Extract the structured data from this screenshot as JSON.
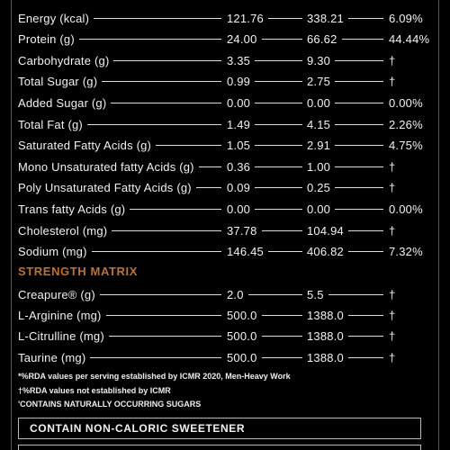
{
  "nutrition": {
    "rows": [
      [
        "Energy (kcal)",
        "121.76",
        "338.21",
        "6.09%"
      ],
      [
        "Protein (g)",
        "24.00",
        "66.62",
        "44.44%"
      ],
      [
        "Carbohydrate (g)",
        "3.35",
        "9.30",
        "†"
      ],
      [
        "Total Sugar (g)",
        "0.99",
        "2.75",
        "†"
      ],
      [
        "Added Sugar (g)",
        "0.00",
        "0.00",
        "0.00%"
      ],
      [
        "Total Fat (g)",
        "1.49",
        "4.15",
        "2.26%"
      ],
      [
        "Saturated Fatty Acids (g)",
        "1.05",
        "2.91",
        "4.75%"
      ],
      [
        "Mono Unsaturated fatty Acids (g)",
        "0.36",
        "1.00",
        "†"
      ],
      [
        "Poly Unsaturated Fatty Acids (g)",
        "0.09",
        "0.25",
        "†"
      ],
      [
        "Trans fatty Acids (g)",
        "0.00",
        "0.00",
        "0.00%"
      ],
      [
        "Cholesterol (mg)",
        "37.78",
        "104.94",
        "†"
      ],
      [
        "Sodium (mg)",
        "146.45",
        "406.82",
        "7.32%"
      ]
    ]
  },
  "strength_matrix": {
    "title": "STRENGTH MATRIX",
    "rows": [
      [
        "Creapure® (g)",
        "2.0",
        "5.5",
        "†"
      ],
      [
        "L-Arginine (mg)",
        "500.0",
        "1388.0",
        "†"
      ],
      [
        "L-Citrulline (mg)",
        "500.0",
        "1388.0",
        "†"
      ],
      [
        "Taurine (mg)",
        "500.0",
        "1388.0",
        "†"
      ]
    ]
  },
  "footnotes": [
    "*%RDA values per serving established by ICMR 2020, Men-Heavy Work",
    "†%RDA values not established by ICMR",
    "'CONTAINS NATURALLY OCCURRING SUGARS"
  ],
  "notice": "CONTAIN NON-CALORIC SWEETENER"
}
